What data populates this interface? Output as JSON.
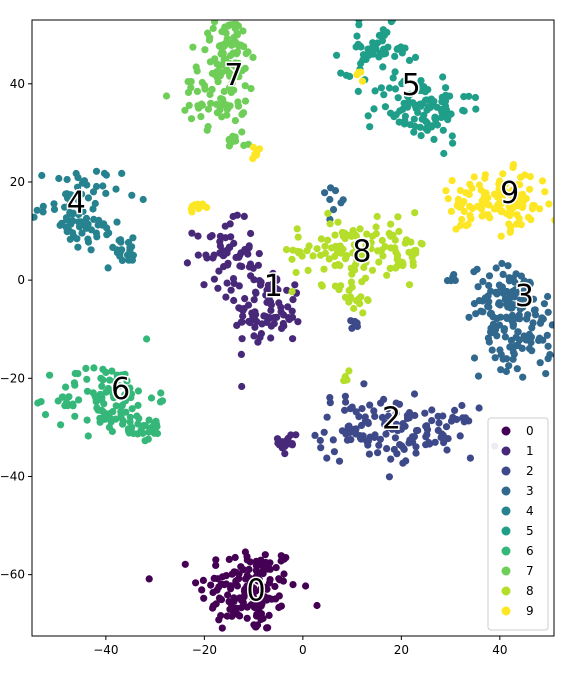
{
  "chart_data": {
    "type": "scatter",
    "title": "",
    "xlabel": "",
    "ylabel": "",
    "xlim": [
      -55,
      51
    ],
    "ylim": [
      -72.5,
      53
    ],
    "grid": false,
    "x_ticks": [
      -40,
      -20,
      0,
      20,
      40
    ],
    "y_ticks": [
      -60,
      -40,
      -20,
      0,
      20,
      40
    ],
    "legend_position": "bottom-right",
    "colors": [
      "#440154",
      "#482878",
      "#3e4989",
      "#31688e",
      "#26828e",
      "#1f9e89",
      "#35b779",
      "#6ece58",
      "#b5de2b",
      "#fde725"
    ],
    "series": [
      {
        "name": "0",
        "label_at": [
          -9.5,
          -63
        ],
        "clusters": [
          {
            "cx": -11,
            "cy": -63,
            "sx": 5,
            "sy": 4.5,
            "n": 150
          }
        ]
      },
      {
        "name": "1",
        "label_at": [
          -6,
          -1
        ],
        "clusters": [
          {
            "cx": -7,
            "cy": -7,
            "sx": 3.5,
            "sy": 3.5,
            "n": 70
          },
          {
            "cx": -16,
            "cy": 6,
            "sx": 3,
            "sy": 3,
            "n": 50
          },
          {
            "cx": -3,
            "cy": -33,
            "sx": 1,
            "sy": 1.5,
            "n": 15
          },
          {
            "cx": -10,
            "cy": -1,
            "sx": 4,
            "sy": 2,
            "n": 25
          }
        ]
      },
      {
        "name": "2",
        "label_at": [
          18,
          -28
        ],
        "clusters": [
          {
            "cx": 13,
            "cy": -30,
            "sx": 5,
            "sy": 3.5,
            "n": 80
          },
          {
            "cx": 25,
            "cy": -31,
            "sx": 5,
            "sy": 2.5,
            "n": 60
          },
          {
            "cx": 11,
            "cy": -9,
            "sx": 1,
            "sy": 0.5,
            "n": 6
          }
        ]
      },
      {
        "name": "3",
        "label_at": [
          45,
          -3
        ],
        "clusters": [
          {
            "cx": 42,
            "cy": -4,
            "sx": 4,
            "sy": 3.5,
            "n": 90
          },
          {
            "cx": 44,
            "cy": -12,
            "sx": 4,
            "sy": 4,
            "n": 70
          },
          {
            "cx": 31,
            "cy": 0,
            "sx": 0.8,
            "sy": 1,
            "n": 6
          },
          {
            "cx": 6,
            "cy": 17,
            "sx": 1,
            "sy": 1.2,
            "n": 8
          }
        ]
      },
      {
        "name": "4",
        "label_at": [
          -46,
          16
        ],
        "clusters": [
          {
            "cx": -47,
            "cy": 17,
            "sx": 5,
            "sy": 3,
            "n": 50
          },
          {
            "cx": -45,
            "cy": 10,
            "sx": 4,
            "sy": 2.5,
            "n": 40
          },
          {
            "cx": -36,
            "cy": 6,
            "sx": 2,
            "sy": 1.2,
            "n": 20
          }
        ]
      },
      {
        "name": "5",
        "label_at": [
          22,
          40
        ],
        "clusters": [
          {
            "cx": 15,
            "cy": 47,
            "sx": 3.5,
            "sy": 2.5,
            "n": 50
          },
          {
            "cx": 24,
            "cy": 35,
            "sx": 5,
            "sy": 3.5,
            "n": 100
          }
        ]
      },
      {
        "name": "6",
        "label_at": [
          -37,
          -22
        ],
        "clusters": [
          {
            "cx": -40,
            "cy": -24,
            "sx": 5,
            "sy": 3.5,
            "n": 100
          },
          {
            "cx": -33,
            "cy": -30,
            "sx": 2.5,
            "sy": 1.5,
            "n": 30
          }
        ]
      },
      {
        "name": "7",
        "label_at": [
          -14,
          42
        ],
        "clusters": [
          {
            "cx": -15,
            "cy": 48,
            "sx": 3,
            "sy": 3,
            "n": 60
          },
          {
            "cx": -17,
            "cy": 38,
            "sx": 4,
            "sy": 3.5,
            "n": 70
          },
          {
            "cx": -13,
            "cy": 29,
            "sx": 1.2,
            "sy": 1.2,
            "n": 10
          }
        ]
      },
      {
        "name": "8",
        "label_at": [
          12,
          6
        ],
        "clusters": [
          {
            "cx": 8,
            "cy": 6,
            "sx": 5,
            "sy": 3.5,
            "n": 90
          },
          {
            "cx": 20,
            "cy": 6,
            "sx": 2.5,
            "sy": 3,
            "n": 40
          },
          {
            "cx": 11,
            "cy": -4,
            "sx": 1.5,
            "sy": 1,
            "n": 12
          },
          {
            "cx": 9,
            "cy": -19,
            "sx": 0.4,
            "sy": 0.6,
            "n": 5
          }
        ]
      },
      {
        "name": "9",
        "label_at": [
          42,
          18
        ],
        "clusters": [
          {
            "cx": 34,
            "cy": 15,
            "sx": 3.5,
            "sy": 2.5,
            "n": 40
          },
          {
            "cx": 42,
            "cy": 16,
            "sx": 4,
            "sy": 3,
            "n": 80
          },
          {
            "cx": -21,
            "cy": 15,
            "sx": 1,
            "sy": 1.2,
            "n": 10
          },
          {
            "cx": -9.5,
            "cy": 26,
            "sx": 0.5,
            "sy": 0.7,
            "n": 7
          },
          {
            "cx": 12,
            "cy": 42,
            "sx": 0.5,
            "sy": 1,
            "n": 5
          }
        ]
      }
    ]
  }
}
